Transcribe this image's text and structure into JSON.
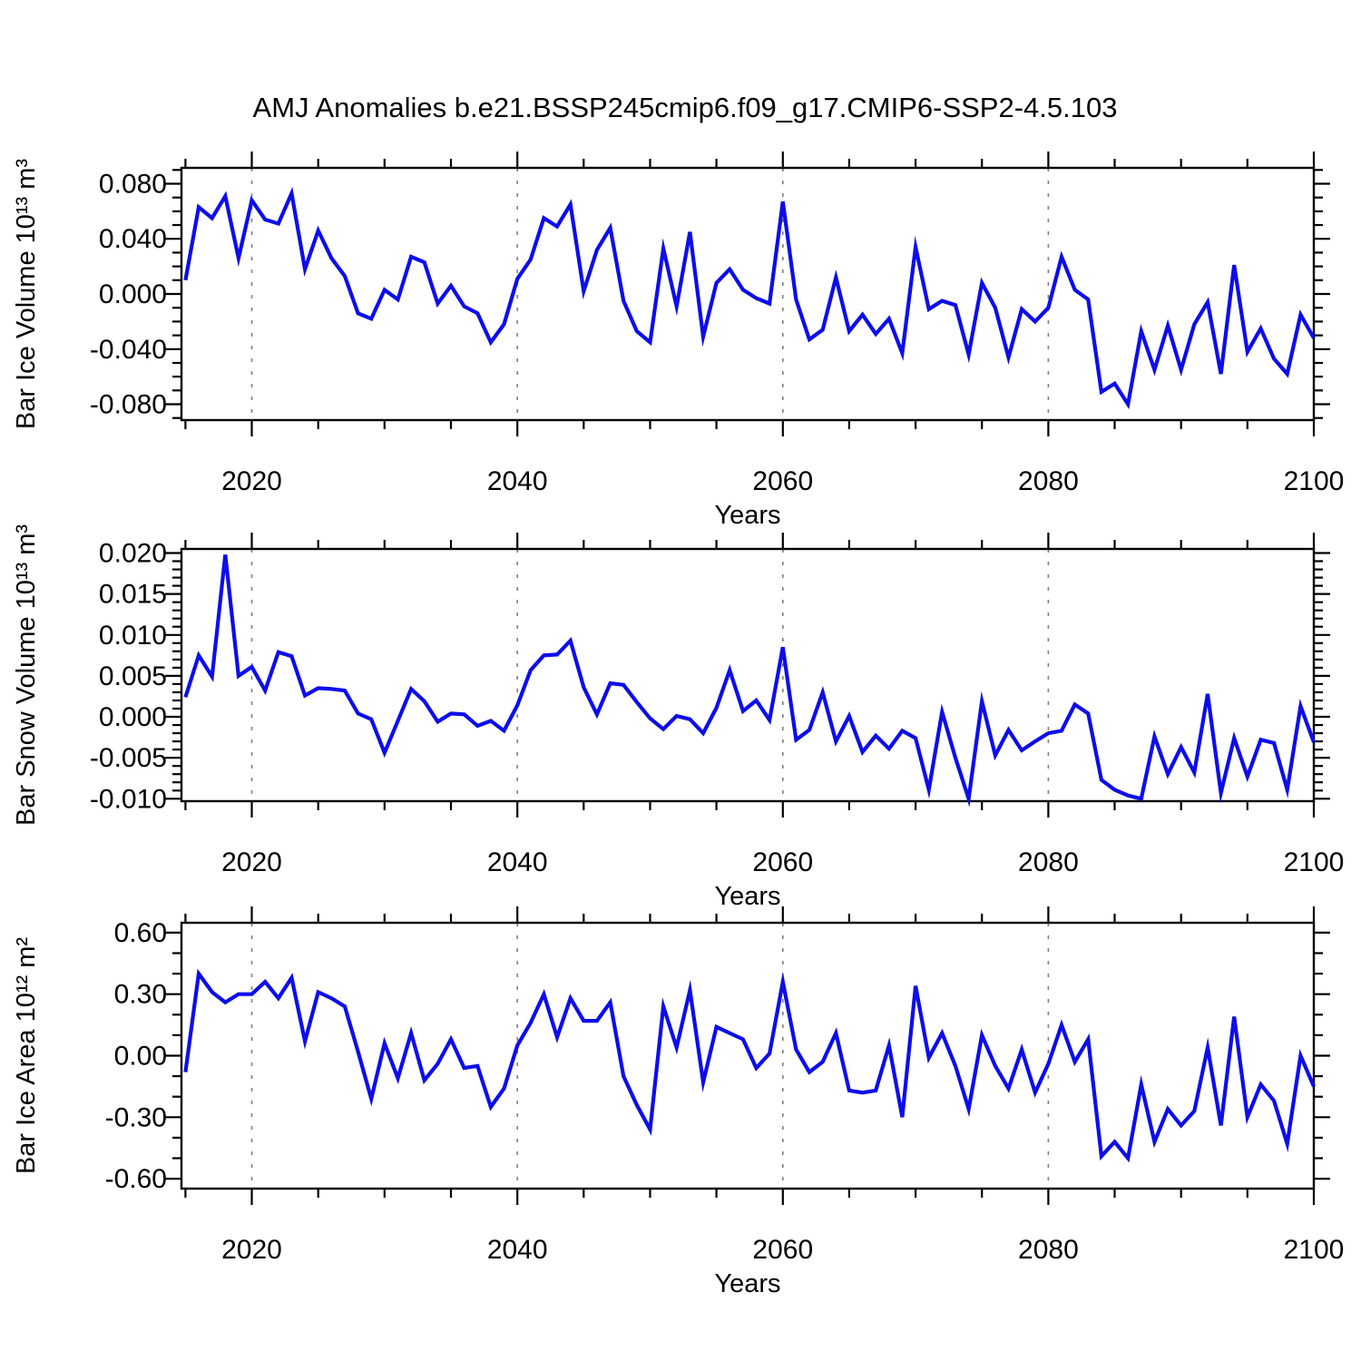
{
  "title": "AMJ Anomalies b.e21.BSSP245cmip6.f09_g17.CMIP6-SSP2-4.5.103",
  "colors": {
    "line": "#0d0deb",
    "axis": "#000000",
    "grid": "#7f7f7f",
    "background": "#ffffff",
    "text": "#000000"
  },
  "chart_data": [
    {
      "type": "line",
      "name": "bar_ice_volume_anomaly",
      "title": "",
      "ylabel": "Bar Ice Volume 10¹³ m³",
      "xlabel": "Years",
      "x_start": 2015,
      "x_step": 1,
      "x_end": 2100,
      "xlim": [
        2014.7,
        2100
      ],
      "ylim": [
        -0.0915,
        0.0915
      ],
      "xticks": [
        2020,
        2040,
        2060,
        2080,
        2100
      ],
      "xtick_labels": [
        "2020",
        "2040",
        "2060",
        "2080",
        "2100"
      ],
      "x_minor_step": 5,
      "grid_x": [
        2020,
        2040,
        2060,
        2080
      ],
      "grid_style": "dashed-vertical",
      "legend": "none",
      "yticks": [
        0.08,
        0.04,
        0.0,
        -0.04,
        -0.08
      ],
      "ytick_labels": [
        "0.080",
        "0.040",
        "0.000",
        "-0.040",
        "-0.080"
      ],
      "y_minor_step": 0.01,
      "values": [
        0.01,
        0.063,
        0.055,
        0.071,
        0.026,
        0.068,
        0.054,
        0.051,
        0.073,
        0.018,
        0.046,
        0.026,
        0.013,
        -0.014,
        -0.018,
        0.003,
        -0.004,
        0.027,
        0.023,
        -0.007,
        0.006,
        -0.009,
        -0.014,
        -0.035,
        -0.022,
        0.011,
        0.025,
        0.055,
        0.049,
        0.065,
        0.002,
        0.032,
        0.048,
        -0.005,
        -0.027,
        -0.035,
        0.033,
        -0.009,
        0.045,
        -0.031,
        0.008,
        0.018,
        0.003,
        -0.003,
        -0.007,
        0.067,
        -0.004,
        -0.033,
        -0.026,
        0.012,
        -0.027,
        -0.015,
        -0.029,
        -0.018,
        -0.043,
        0.034,
        -0.011,
        -0.005,
        -0.008,
        -0.044,
        0.008,
        -0.01,
        -0.046,
        -0.011,
        -0.02,
        -0.01,
        0.027,
        0.003,
        -0.004,
        -0.071,
        -0.065,
        -0.08,
        -0.027,
        -0.055,
        -0.023,
        -0.055,
        -0.022,
        -0.006,
        -0.058,
        0.021,
        -0.042,
        -0.025,
        -0.047,
        -0.058,
        -0.015,
        -0.032
      ]
    },
    {
      "type": "line",
      "name": "bar_snow_volume_anomaly",
      "title": "",
      "ylabel": "Bar Snow Volume 10¹³ m³",
      "xlabel": "Years",
      "x_start": 2015,
      "x_step": 1,
      "x_end": 2100,
      "xlim": [
        2014.7,
        2100
      ],
      "ylim": [
        -0.0103,
        0.0205
      ],
      "xticks": [
        2020,
        2040,
        2060,
        2080,
        2100
      ],
      "xtick_labels": [
        "2020",
        "2040",
        "2060",
        "2080",
        "2100"
      ],
      "x_minor_step": 5,
      "grid_x": [
        2020,
        2040,
        2060,
        2080
      ],
      "grid_style": "dashed-vertical",
      "legend": "none",
      "yticks": [
        0.02,
        0.015,
        0.01,
        0.005,
        0.0,
        -0.005,
        -0.01
      ],
      "ytick_labels": [
        "0.020",
        "0.015",
        "0.010",
        "0.005",
        "0.000",
        "-0.005",
        "-0.010"
      ],
      "y_minor_step": 0.001,
      "values": [
        0.0024,
        0.0075,
        0.0049,
        0.0198,
        0.005,
        0.0061,
        0.0032,
        0.0079,
        0.0074,
        0.0026,
        0.0035,
        0.0034,
        0.0032,
        0.0004,
        -0.0003,
        -0.0044,
        -0.0005,
        0.0034,
        0.0019,
        -0.0006,
        0.0004,
        0.0003,
        -0.0011,
        -0.0005,
        -0.0017,
        0.0014,
        0.0057,
        0.0075,
        0.0076,
        0.0093,
        0.0036,
        0.0003,
        0.0041,
        0.0039,
        0.0018,
        -0.0002,
        -0.0015,
        0.0001,
        -0.0003,
        -0.002,
        0.0011,
        0.0057,
        0.0007,
        0.002,
        -0.0004,
        0.0085,
        -0.0028,
        -0.0016,
        0.003,
        -0.003,
        0.0001,
        -0.0043,
        -0.0023,
        -0.0039,
        -0.0017,
        -0.0026,
        -0.0089,
        0.0006,
        -0.005,
        -0.01,
        0.0019,
        -0.0047,
        -0.0016,
        -0.0041,
        -0.003,
        -0.002,
        -0.0017,
        0.0015,
        0.0004,
        -0.0077,
        -0.0089,
        -0.0096,
        -0.01,
        -0.0024,
        -0.007,
        -0.0037,
        -0.0068,
        0.0028,
        -0.0093,
        -0.0026,
        -0.0073,
        -0.0028,
        -0.0032,
        -0.0089,
        0.0013,
        -0.0031
      ]
    },
    {
      "type": "line",
      "name": "bar_ice_area_anomaly",
      "title": "",
      "ylabel": "Bar Ice Area 10¹² m²",
      "xlabel": "Years",
      "x_start": 2015,
      "x_step": 1,
      "x_end": 2100,
      "xlim": [
        2014.7,
        2100
      ],
      "ylim": [
        -0.648,
        0.648
      ],
      "xticks": [
        2020,
        2040,
        2060,
        2080,
        2100
      ],
      "xtick_labels": [
        "2020",
        "2040",
        "2060",
        "2080",
        "2100"
      ],
      "x_minor_step": 5,
      "grid_x": [
        2020,
        2040,
        2060,
        2080
      ],
      "grid_style": "dashed-vertical",
      "legend": "none",
      "yticks": [
        0.6,
        0.3,
        0.0,
        -0.3,
        -0.6
      ],
      "ytick_labels": [
        "0.60",
        "0.30",
        "0.00",
        "-0.30",
        "-0.60"
      ],
      "y_minor_step": 0.1,
      "values": [
        -0.08,
        0.4,
        0.31,
        0.26,
        0.3,
        0.3,
        0.36,
        0.28,
        0.38,
        0.07,
        0.31,
        0.28,
        0.24,
        0.02,
        -0.21,
        0.06,
        -0.11,
        0.11,
        -0.12,
        -0.04,
        0.08,
        -0.06,
        -0.05,
        -0.25,
        -0.16,
        0.05,
        0.16,
        0.3,
        0.09,
        0.28,
        0.17,
        0.17,
        0.26,
        -0.1,
        -0.24,
        -0.36,
        0.24,
        0.04,
        0.32,
        -0.13,
        0.14,
        0.11,
        0.08,
        -0.06,
        0.01,
        0.36,
        0.03,
        -0.08,
        -0.03,
        0.11,
        -0.17,
        -0.18,
        -0.17,
        0.05,
        -0.3,
        0.34,
        -0.01,
        0.11,
        -0.05,
        -0.26,
        0.1,
        -0.05,
        -0.16,
        0.03,
        -0.18,
        -0.04,
        0.15,
        -0.03,
        0.08,
        -0.49,
        -0.42,
        -0.5,
        -0.14,
        -0.42,
        -0.26,
        -0.34,
        -0.27,
        0.04,
        -0.34,
        0.19,
        -0.3,
        -0.14,
        -0.22,
        -0.43,
        0.0,
        -0.15
      ]
    }
  ]
}
